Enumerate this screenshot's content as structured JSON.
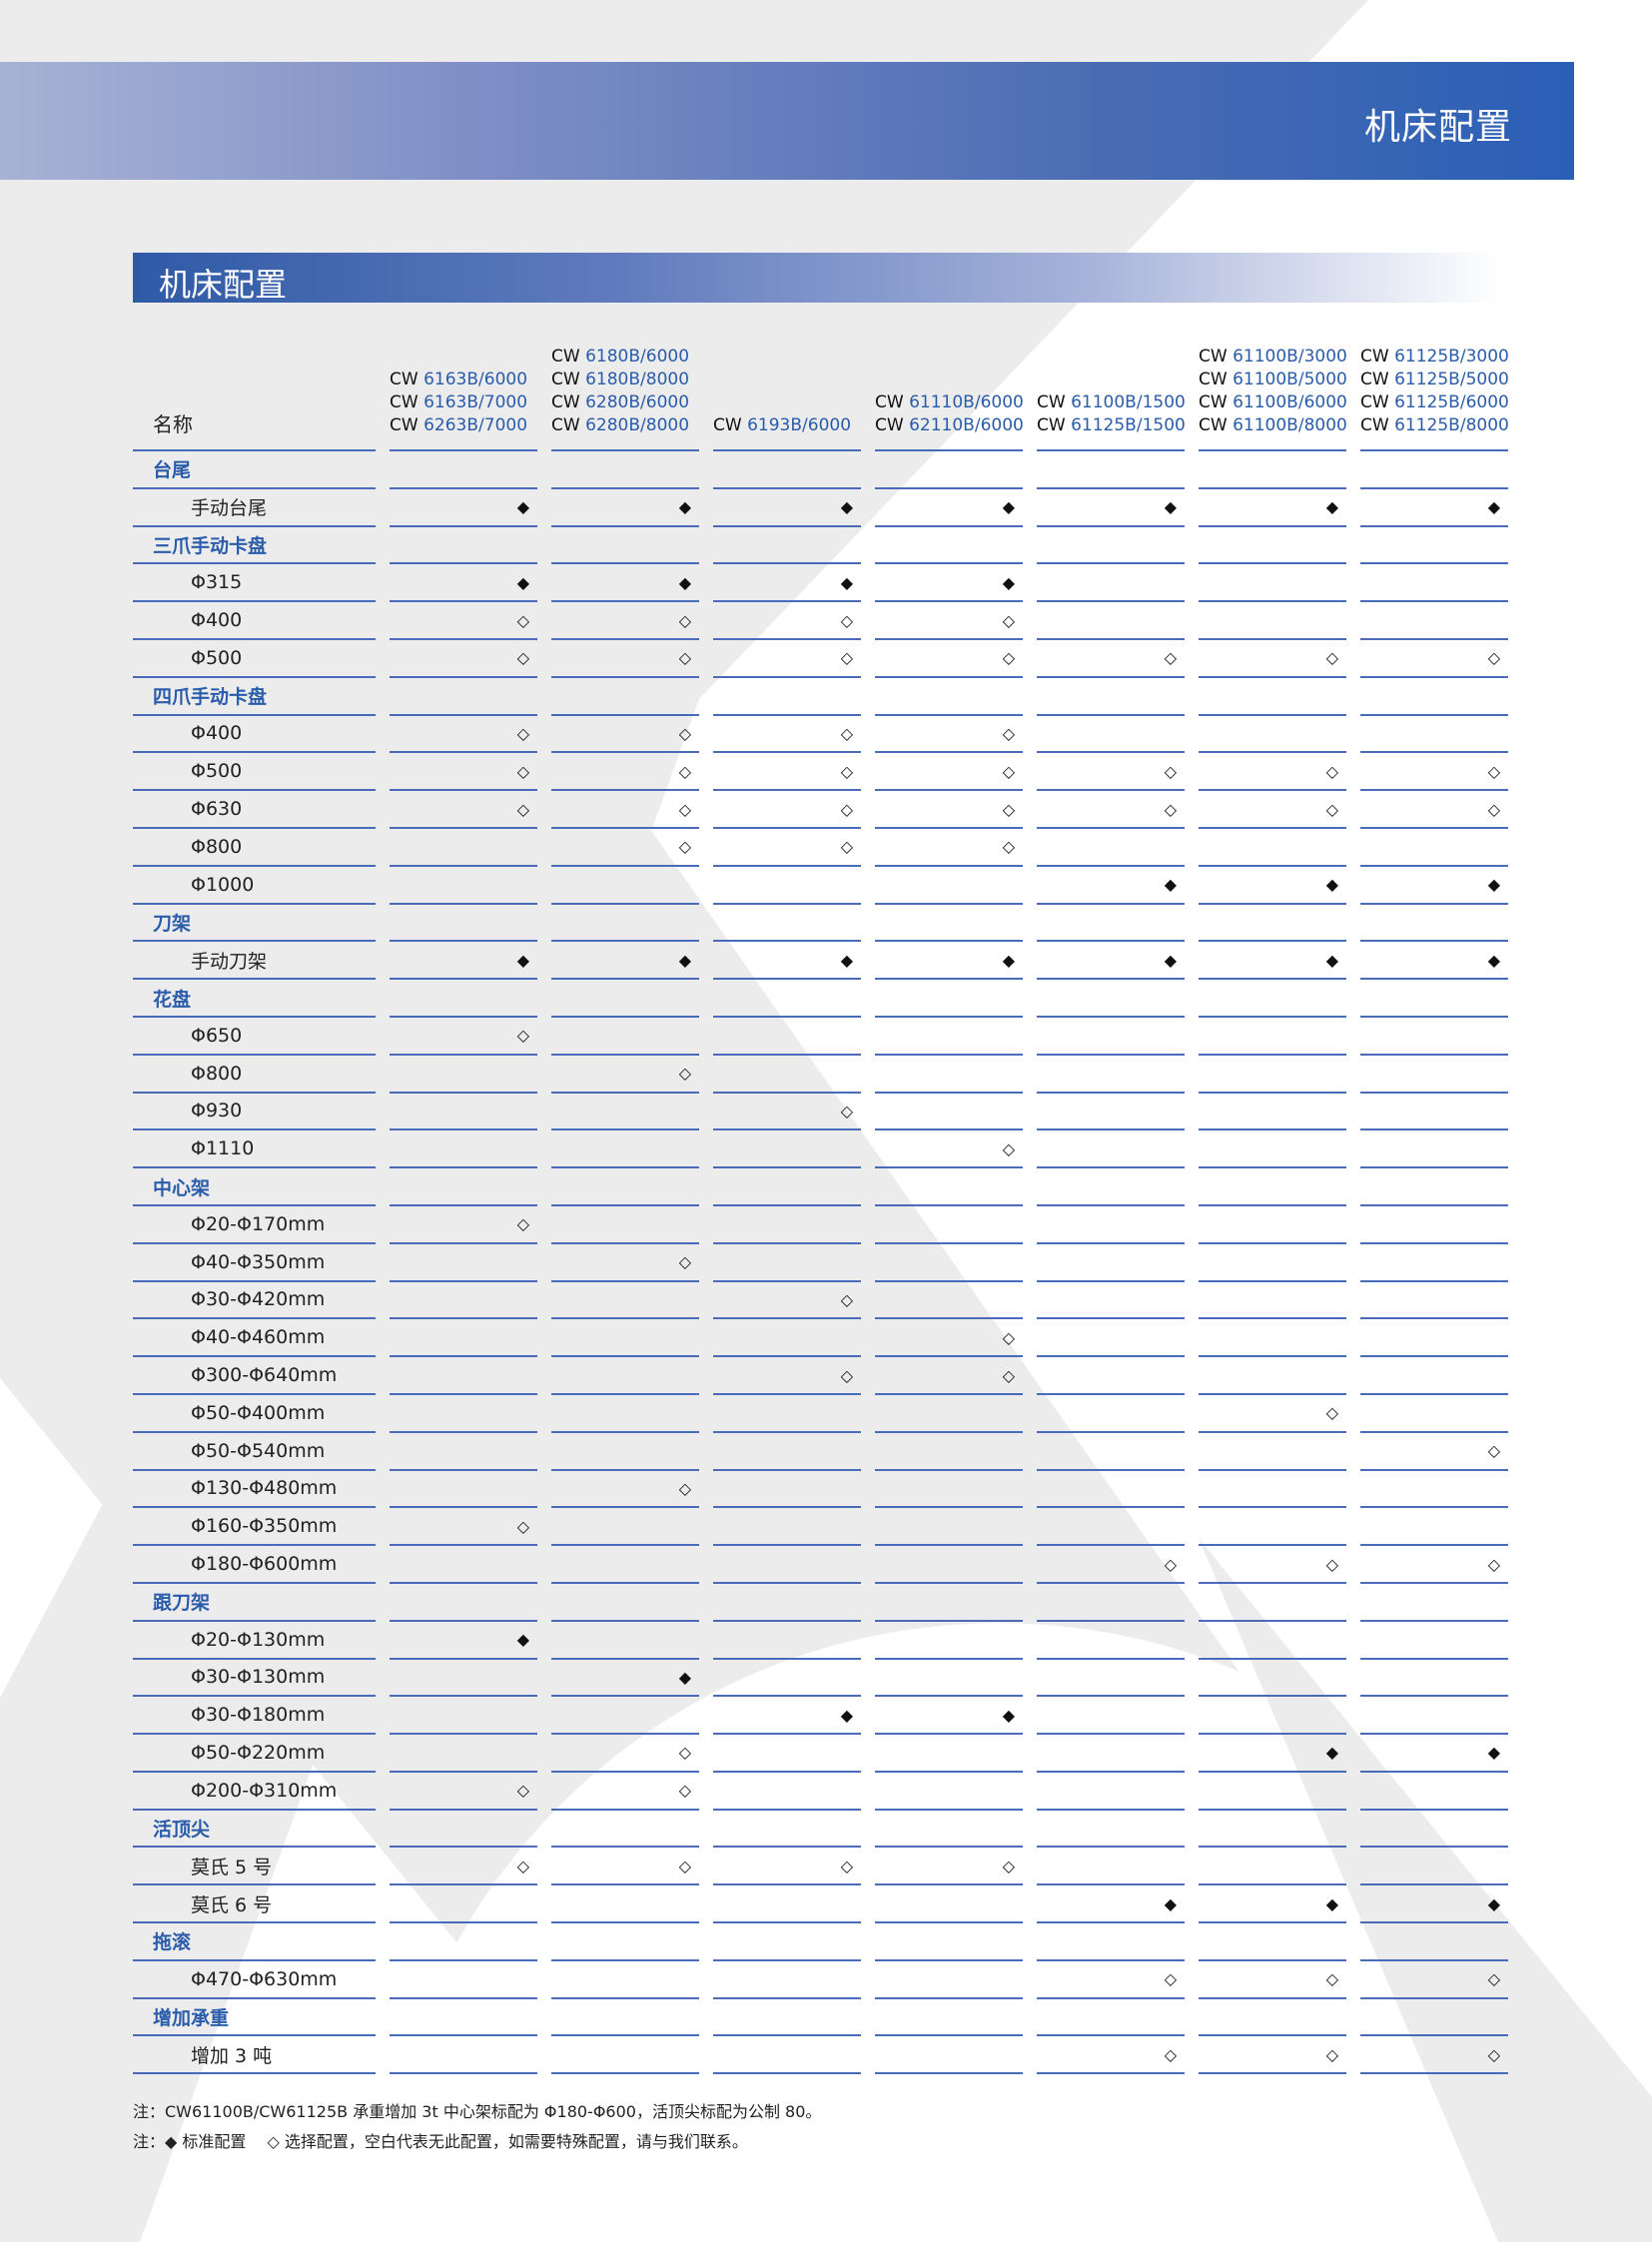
{
  "banner": {
    "title": "机床配置"
  },
  "section": {
    "title": "机床配置"
  },
  "colors": {
    "accent": "#2a5caa",
    "rule": "#4a6cb8"
  },
  "legend": {
    "F": "◆",
    "O": "◇"
  },
  "header": {
    "name_label": "名称",
    "columns": [
      [
        "CW 6163B/6000",
        "CW 6163B/7000",
        "CW 6263B/7000"
      ],
      [
        "CW 6180B/6000",
        "CW 6180B/8000",
        "CW 6280B/6000",
        "CW 6280B/8000"
      ],
      [
        "CW 6193B/6000"
      ],
      [
        "CW 61110B/6000",
        "CW 62110B/6000"
      ],
      [
        "CW 61100B/1500",
        "CW 61125B/1500"
      ],
      [
        "CW 61100B/3000",
        "CW 61100B/5000",
        "CW 61100B/6000",
        "CW 61100B/8000"
      ],
      [
        "CW 61125B/3000",
        "CW 61125B/5000",
        "CW 61125B/6000",
        "CW 61125B/8000"
      ]
    ]
  },
  "rows": [
    {
      "section": "台尾"
    },
    {
      "label": "手动台尾",
      "v": "FFFFFFF"
    },
    {
      "section": "三爪手动卡盘"
    },
    {
      "label": "Φ315",
      "v": "FFFF---"
    },
    {
      "label": "Φ400",
      "v": "OOOO---"
    },
    {
      "label": "Φ500",
      "v": "OOOOOOO"
    },
    {
      "section": "四爪手动卡盘"
    },
    {
      "label": "Φ400",
      "v": "OOOO---"
    },
    {
      "label": "Φ500",
      "v": "OOOOOOO"
    },
    {
      "label": "Φ630",
      "v": "OOOOOOO"
    },
    {
      "label": "Φ800",
      "v": "-OOO---"
    },
    {
      "label": "Φ1000",
      "v": "----FFF"
    },
    {
      "section": "刀架"
    },
    {
      "label": "手动刀架",
      "v": "FFFFFFF"
    },
    {
      "section": "花盘"
    },
    {
      "label": "Φ650",
      "v": "O------"
    },
    {
      "label": "Φ800",
      "v": "-O-----"
    },
    {
      "label": "Φ930",
      "v": "--O----"
    },
    {
      "label": "Φ1110",
      "v": "---O---"
    },
    {
      "section": "中心架"
    },
    {
      "label": "Φ20-Φ170mm",
      "v": "O------"
    },
    {
      "label": "Φ40-Φ350mm",
      "v": "-O-----"
    },
    {
      "label": "Φ30-Φ420mm",
      "v": "--O----"
    },
    {
      "label": "Φ40-Φ460mm",
      "v": "---O---"
    },
    {
      "label": "Φ300-Φ640mm",
      "v": "--OO---"
    },
    {
      "label": "Φ50-Φ400mm",
      "v": "-----O-"
    },
    {
      "label": "Φ50-Φ540mm",
      "v": "------O"
    },
    {
      "label": "Φ130-Φ480mm",
      "v": "-O-----"
    },
    {
      "label": "Φ160-Φ350mm",
      "v": "O------"
    },
    {
      "label": "Φ180-Φ600mm",
      "v": "----OOO"
    },
    {
      "section": "跟刀架"
    },
    {
      "label": "Φ20-Φ130mm",
      "v": "F------"
    },
    {
      "label": "Φ30-Φ130mm",
      "v": "-F-----"
    },
    {
      "label": "Φ30-Φ180mm",
      "v": "--FF---"
    },
    {
      "label": "Φ50-Φ220mm",
      "v": "-O---FF"
    },
    {
      "label": "Φ200-Φ310mm",
      "v": "OO-----"
    },
    {
      "section": "活顶尖"
    },
    {
      "label": "莫氏 5 号",
      "v": "OOOO---"
    },
    {
      "label": "莫氏 6 号",
      "v": "----FFF"
    },
    {
      "section": "拖滚"
    },
    {
      "label": "Φ470-Φ630mm",
      "v": "----OOO"
    },
    {
      "section": "增加承重"
    },
    {
      "label": "增加 3 吨",
      "v": "----OOO"
    }
  ],
  "notes": [
    "注：CW61100B/CW61125B 承重增加 3t 中心架标配为 Φ180-Φ600，活顶尖标配为公制 80。",
    "注：◆ 标准配置　 ◇ 选择配置，空白代表无此配置，如需要特殊配置，请与我们联系。"
  ]
}
